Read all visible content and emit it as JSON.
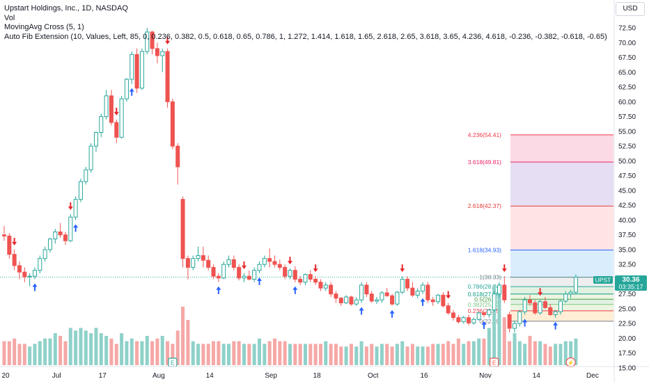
{
  "legend": {
    "title": "Upstart Holdings, Inc., 1D, NASDAQ",
    "vol": "Vol",
    "ma_cross": "MovingAvg Cross (5, 1)",
    "fib": "Auto Fib Extension (10, Values, Left, 85, 0, 0.236, 0.382, 0.5, 0.618, 0.65, 0.786, 1, 1.272, 1.414, 1.618, 1.65, 2.618, 2.65, 3.618, 3.65, 4.236, 4.618, -0.236, -0.382, -0.618, -0.65)"
  },
  "currency": "USD",
  "symbol_tag": {
    "symbol": "UPST",
    "price": "30.36",
    "countdown": "03:35:17"
  },
  "colors": {
    "up": "#26a69a",
    "down": "#ef5350",
    "vol_up": "#8fd1c9",
    "vol_down": "#f5a8a6",
    "signal_up": "#2962ff",
    "signal_down": "#e8272c"
  },
  "chart_data": {
    "type": "candlestick",
    "ylim": [
      15,
      76.5
    ],
    "y_ticks": [
      "15.00",
      "17.50",
      "20.00",
      "22.50",
      "25.00",
      "27.50",
      "30.00",
      "32.50",
      "35.00",
      "37.50",
      "40.00",
      "42.50",
      "45.00",
      "47.50",
      "50.00",
      "52.50",
      "55.00",
      "57.50",
      "60.00",
      "62.50",
      "65.00",
      "67.50",
      "70.00",
      "72.50",
      "75.00"
    ],
    "x_ticks": [
      {
        "i": 0,
        "label": "20"
      },
      {
        "i": 10,
        "label": "Jul"
      },
      {
        "i": 19,
        "label": "17"
      },
      {
        "i": 30,
        "label": "Aug"
      },
      {
        "i": 40,
        "label": "14"
      },
      {
        "i": 52,
        "label": "Sep"
      },
      {
        "i": 61,
        "label": "18"
      },
      {
        "i": 72,
        "label": "Oct"
      },
      {
        "i": 82,
        "label": "16"
      },
      {
        "i": 94,
        "label": "Nov"
      },
      {
        "i": 104,
        "label": "14"
      },
      {
        "i": 115,
        "label": "Dec"
      }
    ],
    "candles": [
      [
        37.5,
        39,
        36.5,
        37.3
      ],
      [
        37.3,
        37.8,
        33.5,
        34.2
      ],
      [
        34.2,
        35,
        31.5,
        32.3
      ],
      [
        32.3,
        33,
        30,
        31.2
      ],
      [
        31.2,
        32,
        29.5,
        30.4
      ],
      [
        30.4,
        31,
        28.8,
        30.5
      ],
      [
        30.5,
        32,
        30,
        31.5
      ],
      [
        31.5,
        34,
        31,
        33.5
      ],
      [
        33.5,
        35.5,
        33,
        35
      ],
      [
        35,
        37,
        34.5,
        36.8
      ],
      [
        36.8,
        38.5,
        36,
        38
      ],
      [
        38,
        39.5,
        37,
        37.5
      ],
      [
        37.5,
        38,
        35.8,
        36.5
      ],
      [
        36.5,
        41,
        36.3,
        40.5
      ],
      [
        40.5,
        44,
        40,
        43.5
      ],
      [
        43.5,
        47,
        43,
        46.5
      ],
      [
        46.5,
        49,
        46,
        48.5
      ],
      [
        48.5,
        53,
        48,
        52.5
      ],
      [
        52.5,
        55,
        51.5,
        54.8
      ],
      [
        54.8,
        58,
        54,
        57.5
      ],
      [
        57.5,
        62,
        57,
        61
      ],
      [
        61,
        62,
        56,
        56.5
      ],
      [
        56.5,
        57,
        53,
        54
      ],
      [
        54,
        61,
        53.8,
        60.5
      ],
      [
        60.5,
        64,
        60,
        63.8
      ],
      [
        63.8,
        68.5,
        63,
        68
      ],
      [
        68,
        69,
        61.5,
        62.3
      ],
      [
        62.3,
        69,
        62,
        68.5
      ],
      [
        68.5,
        72.5,
        68,
        71.8
      ],
      [
        71.8,
        72,
        68,
        69
      ],
      [
        69,
        70,
        66.5,
        67.8
      ],
      [
        67.8,
        69,
        65,
        68.5
      ],
      [
        68.5,
        69,
        59,
        60
      ],
      [
        60,
        60.5,
        52,
        52.5
      ],
      [
        52.5,
        53,
        46,
        49
      ],
      [
        43.5,
        44,
        32,
        33.5
      ],
      [
        33.5,
        34,
        30,
        32
      ],
      [
        32,
        34,
        31.5,
        33.5
      ],
      [
        33.5,
        35.5,
        33,
        34
      ],
      [
        34,
        35.5,
        32,
        33.2
      ],
      [
        33.2,
        34,
        31.5,
        32
      ],
      [
        32,
        32.5,
        30,
        30.5
      ],
      [
        30.5,
        31,
        29.5,
        30.2
      ],
      [
        30.2,
        33,
        30,
        32.5
      ],
      [
        32.5,
        34,
        32,
        33.3
      ],
      [
        33.3,
        34,
        31.5,
        32
      ],
      [
        32,
        32.5,
        29.8,
        30.2
      ],
      [
        30.2,
        31,
        29.5,
        30.5
      ],
      [
        30.5,
        31.5,
        29.8,
        30
      ],
      [
        30,
        32,
        29.5,
        31.5
      ],
      [
        31.5,
        33,
        31,
        32.5
      ],
      [
        32.5,
        34,
        32,
        33.5
      ],
      [
        33.5,
        35.2,
        32,
        33
      ],
      [
        33,
        34,
        32,
        32.5
      ],
      [
        32.5,
        33.3,
        31.5,
        32
      ],
      [
        32,
        32.5,
        30,
        30.5
      ],
      [
        30.5,
        31.8,
        30,
        31.5
      ],
      [
        31.5,
        32.2,
        29.5,
        30
      ],
      [
        30,
        30.5,
        29,
        29.5
      ],
      [
        29.5,
        31,
        29,
        30.8
      ],
      [
        30.8,
        31.5,
        29.5,
        30
      ],
      [
        30,
        30.5,
        29,
        29.5
      ],
      [
        29.5,
        30,
        28,
        28.5
      ],
      [
        28.5,
        29.5,
        28,
        29
      ],
      [
        29,
        29.5,
        27,
        27.5
      ],
      [
        27.5,
        28,
        26,
        26.8
      ],
      [
        26.8,
        27,
        25.5,
        26
      ],
      [
        26,
        27.3,
        25.8,
        27
      ],
      [
        27,
        27.2,
        25.5,
        25.8
      ],
      [
        25.8,
        27,
        25.5,
        26.5
      ],
      [
        26.5,
        29.5,
        26,
        29
      ],
      [
        29,
        29.5,
        27,
        27.5
      ],
      [
        27.5,
        28,
        26,
        26.3
      ],
      [
        26.3,
        27,
        25.8,
        26.5
      ],
      [
        26.5,
        28,
        26,
        27.7
      ],
      [
        27.7,
        28.5,
        27,
        27.2
      ],
      [
        27.2,
        27.5,
        25.5,
        25.8
      ],
      [
        25.8,
        28,
        25.5,
        27.8
      ],
      [
        27.8,
        30.5,
        27.5,
        30
      ],
      [
        30,
        30.5,
        28,
        28.5
      ],
      [
        28.5,
        29.5,
        27,
        27.3
      ],
      [
        27.3,
        28.5,
        26.8,
        28
      ],
      [
        28,
        29.5,
        27.5,
        29
      ],
      [
        29,
        29.5,
        26,
        26.5
      ],
      [
        26.5,
        27,
        25.5,
        26.2
      ],
      [
        26.2,
        27.5,
        25.8,
        27.3
      ],
      [
        27.3,
        27.8,
        25.2,
        25.5
      ],
      [
        25.5,
        26,
        24,
        24.3
      ],
      [
        24.3,
        24.8,
        23,
        23.5
      ],
      [
        23.5,
        24,
        22.5,
        22.8
      ],
      [
        22.8,
        23.8,
        22.5,
        23.5
      ],
      [
        23.5,
        24,
        22.2,
        22.6
      ],
      [
        22.6,
        23.5,
        22.3,
        23.2
      ],
      [
        23.2,
        24.5,
        23,
        24.3
      ],
      [
        24.3,
        24.5,
        23.6,
        24
      ],
      [
        24,
        25,
        23.5,
        24.8
      ],
      [
        24.8,
        28,
        24.5,
        27.5
      ],
      [
        27.5,
        29.5,
        27,
        29
      ],
      [
        29,
        30.5,
        26,
        26.5
      ],
      [
        24,
        24.5,
        21,
        21.7
      ],
      [
        21.7,
        23,
        21,
        22.5
      ],
      [
        22.5,
        24.8,
        22,
        24.5
      ],
      [
        24.5,
        27,
        24,
        26.5
      ],
      [
        26.5,
        27.3,
        25.5,
        26
      ],
      [
        26,
        26.5,
        24,
        24.3
      ],
      [
        24.3,
        26.5,
        24,
        26.2
      ],
      [
        26.2,
        27,
        25,
        25.2
      ],
      [
        25.2,
        25.8,
        23.8,
        24
      ],
      [
        24,
        24.8,
        23.5,
        24.5
      ],
      [
        24.5,
        26.5,
        24,
        26.3
      ],
      [
        26.3,
        28,
        26,
        27.5
      ],
      [
        27.5,
        28.2,
        26.8,
        27.8
      ],
      [
        27.8,
        30.8,
        27.5,
        30.36
      ]
    ],
    "volume": [
      9,
      9,
      10,
      8,
      8,
      7,
      8,
      9,
      10,
      10,
      12,
      11,
      9,
      14,
      13,
      14,
      13,
      12,
      14,
      12,
      11,
      10,
      8,
      12,
      9,
      10,
      9,
      9,
      11,
      9,
      10,
      11,
      9,
      8,
      13,
      22,
      17,
      9,
      8,
      8,
      8,
      9,
      9,
      8,
      8,
      9,
      9,
      8,
      8,
      8,
      10,
      8,
      9,
      10,
      9,
      9,
      8,
      8,
      8,
      8,
      8,
      8,
      8,
      9,
      8,
      8,
      7,
      7,
      8,
      7,
      9,
      7,
      8,
      7,
      8,
      8,
      7,
      8,
      9,
      7,
      8,
      7,
      7,
      7,
      8,
      8,
      8,
      9,
      8,
      10,
      8,
      9,
      9,
      10,
      10,
      14,
      30,
      27,
      18,
      9,
      12,
      9,
      8,
      11,
      9,
      9,
      8,
      7,
      8,
      8,
      9,
      9,
      10
    ],
    "volume_ylim": [
      0,
      34
    ],
    "fib_levels": [
      {
        "ratio": "4.236",
        "price": 54.41,
        "label": "4.236(54.41)",
        "color": "#f23645",
        "fill": "#f8bbd0"
      },
      {
        "ratio": "3.618",
        "price": 49.81,
        "label": "3.618(49.81)",
        "color": "#e91e63",
        "fill": "#d1c4e9"
      },
      {
        "ratio": "2.618",
        "price": 42.37,
        "label": "2.618(42.37)",
        "color": "#e53935",
        "fill": "#ffcdd2"
      },
      {
        "ratio": "1.618",
        "price": 34.93,
        "label": "1.618(34.93)",
        "color": "#2962ff",
        "fill": "#bbdefb"
      },
      {
        "ratio": "1",
        "price": 30.33,
        "label": "1(30.33)",
        "color": "#787b86",
        "fill": "#e0e0e0"
      },
      {
        "ratio": "0.786",
        "price": 28.74,
        "label": "0.786(28.74)",
        "color": "#26a69a",
        "fill": "#c8e6c9"
      },
      {
        "ratio": "0.618",
        "price": 27.49,
        "label": "0.618(27.49)",
        "color": "#089981",
        "fill": "#dcedc8"
      },
      {
        "ratio": "0.5",
        "price": 26.61,
        "label": "0.5(26.61)",
        "color": "#43a047",
        "fill": "#c8e6c9"
      },
      {
        "ratio": "0.382",
        "price": 25.73,
        "label": "0.382(25.73)",
        "color": "#81c784",
        "fill": "#dcedc8"
      },
      {
        "ratio": "0.236",
        "price": 24.65,
        "label": "0.236(24.65)",
        "color": "#f23645",
        "fill": "#ffe0b2"
      },
      {
        "ratio": "0",
        "price": 22.89,
        "label": "0(22.89)",
        "color": "#787b86",
        "fill": null
      }
    ],
    "fib_start_index": 103,
    "signals": [
      {
        "i": 2,
        "dir": "down"
      },
      {
        "i": 6,
        "dir": "up"
      },
      {
        "i": 13,
        "dir": "down"
      },
      {
        "i": 14,
        "dir": "up"
      },
      {
        "i": 22,
        "dir": "down"
      },
      {
        "i": 25,
        "dir": "up"
      },
      {
        "i": 32,
        "dir": "down"
      },
      {
        "i": 42,
        "dir": "up"
      },
      {
        "i": 47,
        "dir": "down"
      },
      {
        "i": 50,
        "dir": "up"
      },
      {
        "i": 56,
        "dir": "down"
      },
      {
        "i": 57,
        "dir": "up"
      },
      {
        "i": 61,
        "dir": "down"
      },
      {
        "i": 70,
        "dir": "up"
      },
      {
        "i": 76,
        "dir": "up"
      },
      {
        "i": 78,
        "dir": "down"
      },
      {
        "i": 82,
        "dir": "up"
      },
      {
        "i": 87,
        "dir": "down"
      },
      {
        "i": 94,
        "dir": "up"
      },
      {
        "i": 98,
        "dir": "down"
      },
      {
        "i": 102,
        "dir": "up"
      },
      {
        "i": 105,
        "dir": "down"
      },
      {
        "i": 108,
        "dir": "up"
      }
    ],
    "earnings_markers": [
      {
        "i": 33,
        "label": "E"
      },
      {
        "i": 96,
        "label": "E"
      }
    ],
    "dividend_markers": [
      {
        "i": 111,
        "label": "⚡"
      }
    ],
    "current_price": 30.36
  }
}
